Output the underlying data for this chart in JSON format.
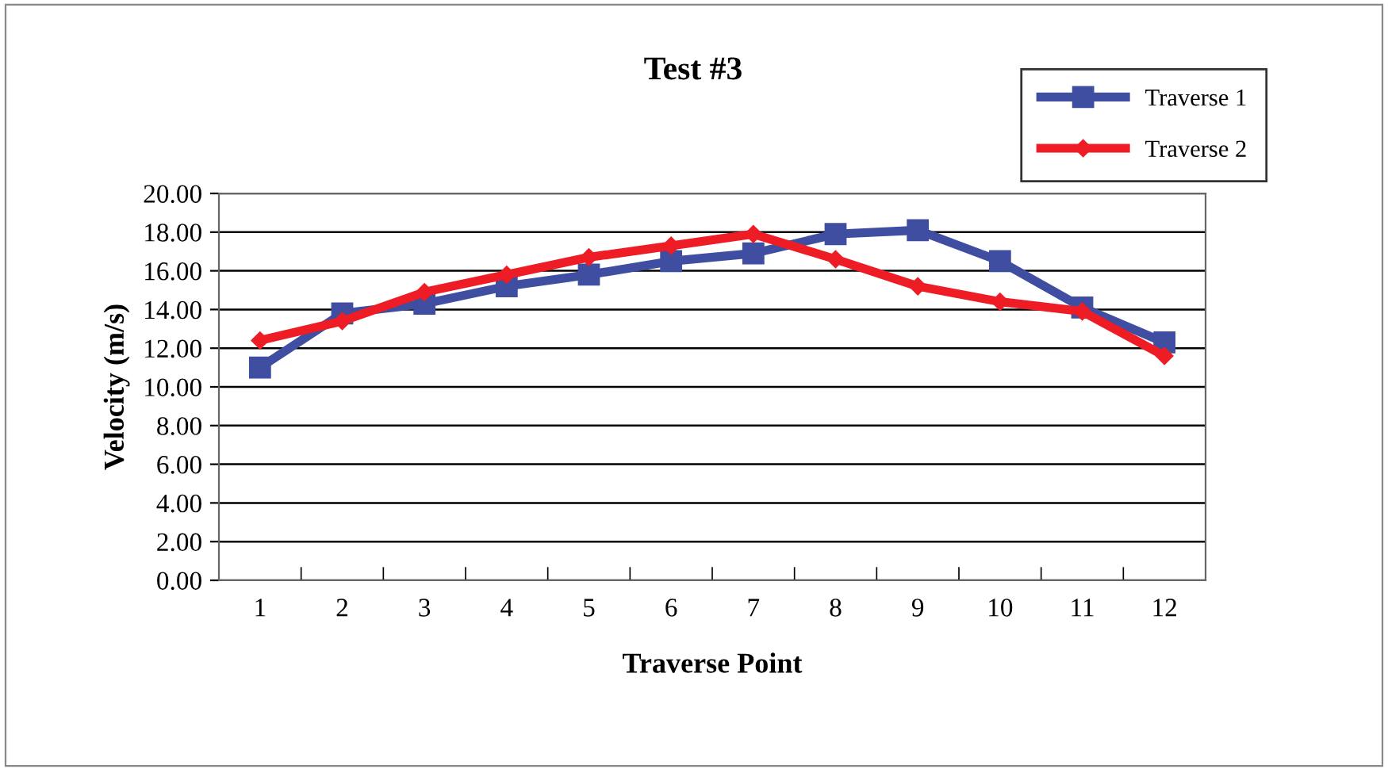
{
  "chart_data": {
    "type": "line",
    "title": "Test #3",
    "xlabel": "Traverse Point",
    "ylabel": "Velocity (m/s)",
    "categories": [
      "1",
      "2",
      "3",
      "4",
      "5",
      "6",
      "7",
      "8",
      "9",
      "10",
      "11",
      "12"
    ],
    "series": [
      {
        "name": "Traverse 1",
        "color": "#3f4ea0",
        "marker": "square",
        "values": [
          11.0,
          13.8,
          14.3,
          15.2,
          15.8,
          16.5,
          16.9,
          17.9,
          18.1,
          16.5,
          14.1,
          12.3
        ]
      },
      {
        "name": "Traverse 2",
        "color": "#ee1c25",
        "marker": "diamond",
        "values": [
          12.4,
          13.4,
          14.9,
          15.8,
          16.7,
          17.3,
          17.9,
          16.6,
          15.2,
          14.4,
          13.9,
          11.6
        ]
      }
    ],
    "ylim": [
      0,
      20
    ],
    "yticks": [
      {
        "value": 0,
        "label": "0.00"
      },
      {
        "value": 2,
        "label": "2.00"
      },
      {
        "value": 4,
        "label": "4.00"
      },
      {
        "value": 6,
        "label": "6.00"
      },
      {
        "value": 8,
        "label": "8.00"
      },
      {
        "value": 10,
        "label": "10.00"
      },
      {
        "value": 12,
        "label": "12.00"
      },
      {
        "value": 14,
        "label": "14.00"
      },
      {
        "value": 16,
        "label": "16.00"
      },
      {
        "value": 18,
        "label": "18.00"
      },
      {
        "value": 20,
        "label": "20.00"
      }
    ],
    "grid": "y",
    "legend": "top right",
    "line_style": "solid"
  }
}
